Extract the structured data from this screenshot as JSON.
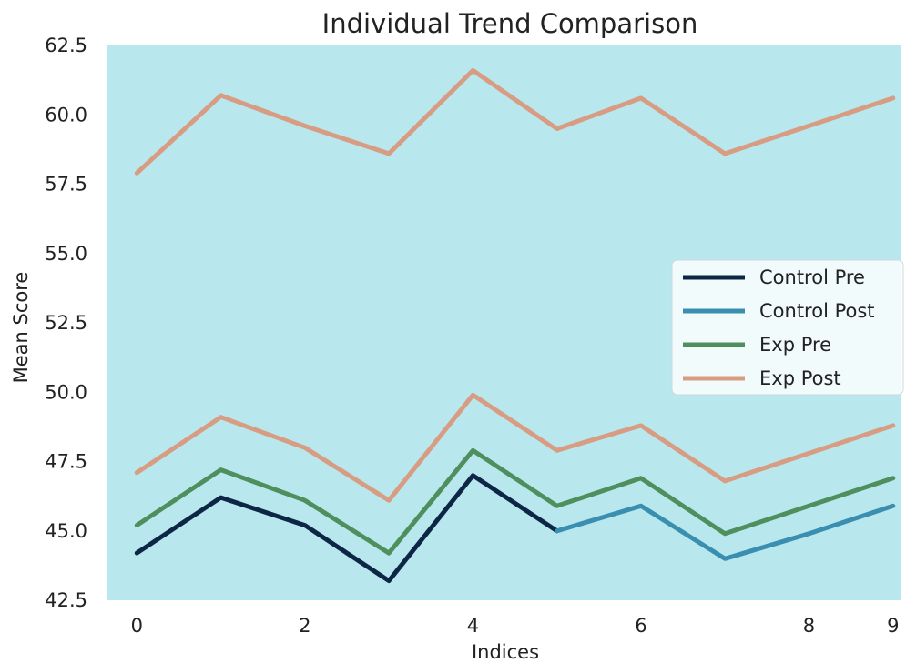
{
  "chart_data": {
    "type": "line",
    "title": "Individual Trend Comparison",
    "xlabel": "Indices",
    "ylabel": "Mean Score",
    "x": [
      0,
      1,
      2,
      3,
      4,
      5,
      6,
      7,
      8,
      9
    ],
    "xticks": [
      "0",
      "2",
      "4",
      "6",
      "8",
      "9"
    ],
    "xtick_values": [
      0,
      2,
      4,
      6,
      8,
      9
    ],
    "yticks": [
      "42.5",
      "45.0",
      "47.5",
      "50.0",
      "52.5",
      "55.0",
      "57.5",
      "60.0",
      "62.5"
    ],
    "ytick_values": [
      42.5,
      45.0,
      47.5,
      50.0,
      52.5,
      55.0,
      57.5,
      60.0,
      62.5
    ],
    "xlim": [
      -0.35,
      9.1
    ],
    "ylim": [
      42.5,
      62.5
    ],
    "grid": false,
    "background": "#b8e8ee",
    "legend_position": "center-right",
    "series": [
      {
        "name": "Control Pre",
        "color": "#0d2645",
        "values": [
          44.2,
          46.2,
          45.2,
          43.2,
          47.0,
          45.0,
          null,
          null,
          null,
          null
        ]
      },
      {
        "name": "Control Post",
        "color": "#3a8fb0",
        "values": [
          null,
          null,
          null,
          null,
          null,
          45.0,
          45.9,
          44.0,
          44.9,
          45.9
        ]
      },
      {
        "name": "Exp Pre",
        "color": "#4e8f5d",
        "values": [
          45.2,
          47.2,
          46.1,
          44.2,
          47.9,
          45.9,
          46.9,
          44.9,
          45.9,
          46.9
        ]
      },
      {
        "name": "Exp Post",
        "color": "#d89c82",
        "values": [
          47.1,
          49.1,
          48.0,
          46.1,
          49.9,
          47.9,
          48.8,
          46.8,
          47.8,
          48.8
        ]
      },
      {
        "name": "",
        "color": "#d89c82",
        "values": [
          57.9,
          60.7,
          59.6,
          58.6,
          61.6,
          59.5,
          60.6,
          58.6,
          59.6,
          60.6
        ]
      }
    ],
    "legend": [
      "Control Pre",
      "Control Post",
      "Exp Pre",
      "Exp Post"
    ]
  }
}
